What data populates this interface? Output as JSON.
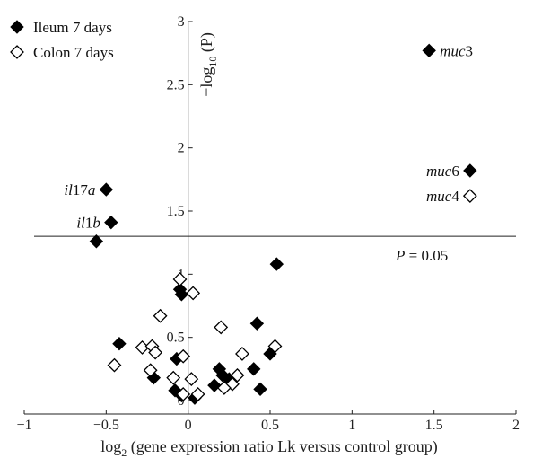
{
  "chart_data": {
    "type": "scatter",
    "xlabel": {
      "pre": "log",
      "sub": "2",
      "post": " (gene expression ratio Lk versus control group)"
    },
    "ylabel": {
      "pre": "−log",
      "sub": "10",
      "post": " (P)"
    },
    "xlim": [
      -1,
      2
    ],
    "ylim": [
      0,
      3
    ],
    "x_ticks": [
      -1,
      -0.5,
      0,
      0.5,
      1,
      1.5,
      2
    ],
    "y_ticks": [
      0,
      0.5,
      1,
      1.5,
      2,
      2.5,
      3
    ],
    "x_tick_labels": [
      "−1",
      "−0.5",
      "0",
      "0.5",
      "1",
      "1.5",
      "2"
    ],
    "y_tick_labels": [
      "0",
      "0.5",
      "1",
      "1.5",
      "2",
      "2.5",
      "3"
    ],
    "threshold": {
      "y": 1.3,
      "label_pre": "P",
      "label_post": " = 0.05"
    },
    "legend_position": "top-left",
    "series": [
      {
        "name": "Ileum 7 days",
        "marker": "filled-diamond",
        "color": "#000000",
        "points": [
          {
            "x": 1.47,
            "y": 2.77,
            "label": "muc3"
          },
          {
            "x": 1.72,
            "y": 1.82,
            "label": "muc6"
          },
          {
            "x": -0.5,
            "y": 1.67,
            "label": "il17a"
          },
          {
            "x": -0.47,
            "y": 1.41,
            "label": "il1b"
          },
          {
            "x": -0.56,
            "y": 1.26
          },
          {
            "x": 0.54,
            "y": 1.08
          },
          {
            "x": -0.05,
            "y": 0.88
          },
          {
            "x": -0.04,
            "y": 0.84
          },
          {
            "x": 0.42,
            "y": 0.61
          },
          {
            "x": -0.42,
            "y": 0.45
          },
          {
            "x": 0.5,
            "y": 0.37
          },
          {
            "x": -0.07,
            "y": 0.33
          },
          {
            "x": 0.19,
            "y": 0.25
          },
          {
            "x": 0.4,
            "y": 0.25
          },
          {
            "x": 0.21,
            "y": 0.2
          },
          {
            "x": 0.25,
            "y": 0.17
          },
          {
            "x": -0.21,
            "y": 0.18
          },
          {
            "x": 0.16,
            "y": 0.12
          },
          {
            "x": 0.44,
            "y": 0.09
          },
          {
            "x": -0.08,
            "y": 0.08
          },
          {
            "x": -0.04,
            "y": 0.04
          },
          {
            "x": 0.04,
            "y": 0.02
          }
        ]
      },
      {
        "name": "Colon 7 days",
        "marker": "open-diamond",
        "color": "#000000",
        "points": [
          {
            "x": 1.72,
            "y": 1.62,
            "label": "muc4"
          },
          {
            "x": -0.05,
            "y": 0.96
          },
          {
            "x": 0.03,
            "y": 0.85
          },
          {
            "x": -0.17,
            "y": 0.67
          },
          {
            "x": 0.2,
            "y": 0.58
          },
          {
            "x": 0.53,
            "y": 0.43
          },
          {
            "x": -0.28,
            "y": 0.42
          },
          {
            "x": -0.22,
            "y": 0.43
          },
          {
            "x": -0.2,
            "y": 0.38
          },
          {
            "x": 0.33,
            "y": 0.37
          },
          {
            "x": -0.03,
            "y": 0.35
          },
          {
            "x": -0.45,
            "y": 0.28
          },
          {
            "x": -0.23,
            "y": 0.24
          },
          {
            "x": 0.3,
            "y": 0.2
          },
          {
            "x": -0.09,
            "y": 0.18
          },
          {
            "x": 0.02,
            "y": 0.17
          },
          {
            "x": 0.27,
            "y": 0.13
          },
          {
            "x": 0.22,
            "y": 0.1
          },
          {
            "x": -0.03,
            "y": 0.05
          },
          {
            "x": 0.06,
            "y": 0.05
          }
        ]
      }
    ]
  }
}
